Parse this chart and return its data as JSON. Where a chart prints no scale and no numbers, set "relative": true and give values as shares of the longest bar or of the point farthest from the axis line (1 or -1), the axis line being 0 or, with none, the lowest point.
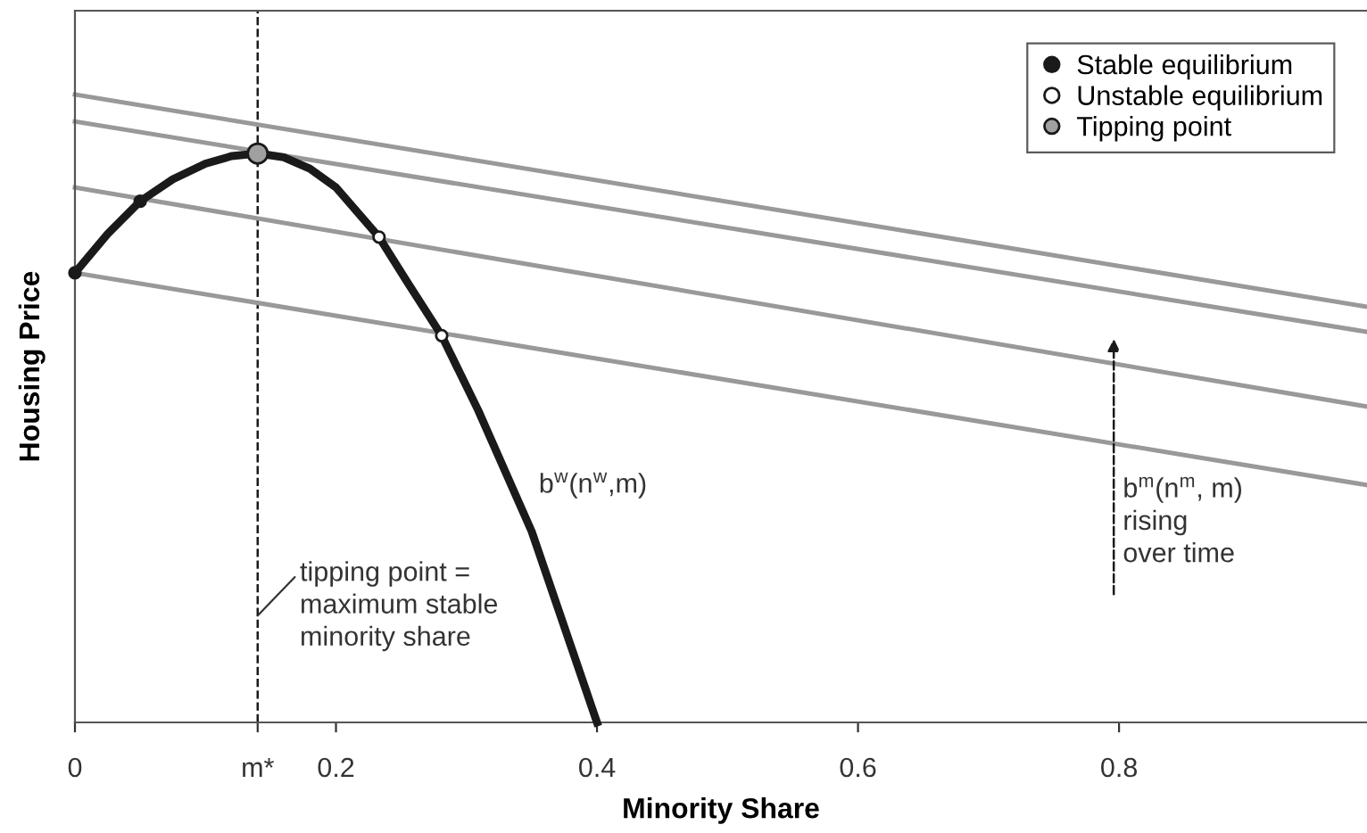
{
  "chart_data": {
    "type": "line",
    "relative": true,
    "xlabel": "Minority Share",
    "ylabel": "Housing Price",
    "xlim": [
      0,
      0.99
    ],
    "xticks": [
      0,
      {
        "value": 0.14,
        "label": "m*"
      },
      0.2,
      0.4,
      0.6,
      0.8
    ],
    "series": [
      {
        "color": "#1a1a1a",
        "x": [
          0,
          0.025,
          0.05,
          0.075,
          0.1,
          0.12,
          0.14,
          0.16,
          0.18,
          0.2,
          0.233,
          0.255,
          0.281,
          0.309,
          0.35,
          0.4
        ],
        "values": [
          0.716,
          0.778,
          0.83,
          0.865,
          0.89,
          0.902,
          0.906,
          0.9,
          0.882,
          0.852,
          0.773,
          0.7,
          0.616,
          0.497,
          0.304,
          0
        ]
      },
      {
        "color": "#999999",
        "x": [
          0,
          0.99
        ],
        "values": [
          1.0,
          0.662
        ]
      },
      {
        "color": "#999999",
        "x": [
          0,
          0.99
        ],
        "values": [
          0.957,
          0.622
        ]
      },
      {
        "color": "#999999",
        "x": [
          0,
          0.99
        ],
        "values": [
          0.852,
          0.503
        ]
      },
      {
        "color": "#999999",
        "x": [
          0,
          0.99
        ],
        "values": [
          0.716,
          0.378
        ]
      },
      {
        "type": "scatter",
        "name": "Stable equilibrium",
        "color": "#1a1a1a",
        "marker": "circle",
        "x": [
          0,
          0.05
        ],
        "values": [
          0.716,
          0.83
        ]
      },
      {
        "type": "scatter",
        "name": "Unstable equilibrium",
        "color": "#ffffff",
        "marker": "circle",
        "x": [
          0.233,
          0.281
        ],
        "values": [
          0.773,
          0.616
        ]
      },
      {
        "type": "scatter",
        "name": "Tipping point",
        "color": "#a0a0a0",
        "marker": "circle",
        "x": [
          0.14
        ],
        "values": [
          0.906
        ]
      }
    ],
    "ref_lines": [
      {
        "axis": "x",
        "value": 0.14,
        "line_style": "dashed",
        "color": "#1a1a1a"
      }
    ],
    "annotations": [
      "b$^{w}$(n$^{w}$,m)",
      {
        "text": "tipping point =\nmaximum stable\nminority share",
        "x": 0.14,
        "y": 0.17
      },
      "b$^{m}$(n$^{m}$, m)\nrising\nover time"
    ],
    "legend": "top right",
    "grid": false,
    "line_style": "solid"
  }
}
